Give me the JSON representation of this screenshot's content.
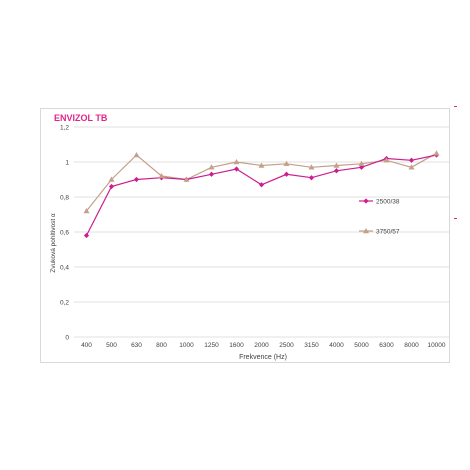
{
  "chart_data": {
    "type": "line",
    "title": "ENVIZOL TB",
    "xlabel": "Frekvence (Hz)",
    "ylabel": "Zvuková pohltivost α",
    "categories": [
      "400",
      "500",
      "630",
      "800",
      "1000",
      "1250",
      "1600",
      "2000",
      "2500",
      "3150",
      "4000",
      "5000",
      "6300",
      "8000",
      "10000"
    ],
    "ylim": [
      0,
      1.2
    ],
    "yticks": [
      "0",
      "0,2",
      "0,4",
      "0,6",
      "0,8",
      "1",
      "1,2"
    ],
    "grid": true,
    "legend_position": "right",
    "series": [
      {
        "name": "2500/38",
        "color": "#cc1e8f",
        "marker": "diamond",
        "values": [
          0.58,
          0.86,
          0.9,
          0.91,
          0.9,
          0.93,
          0.96,
          0.87,
          0.93,
          0.91,
          0.95,
          0.97,
          1.02,
          1.01,
          1.04
        ]
      },
      {
        "name": "3750/57",
        "color": "#c4a089",
        "marker": "triangle",
        "values": [
          0.72,
          0.9,
          1.04,
          0.92,
          0.9,
          0.97,
          1.0,
          0.98,
          0.99,
          0.97,
          0.98,
          0.99,
          1.01,
          0.97,
          1.05
        ]
      }
    ]
  },
  "colors": {
    "title": "#e0258a",
    "grid": "#d9d9d9",
    "axis_text": "#404040"
  }
}
